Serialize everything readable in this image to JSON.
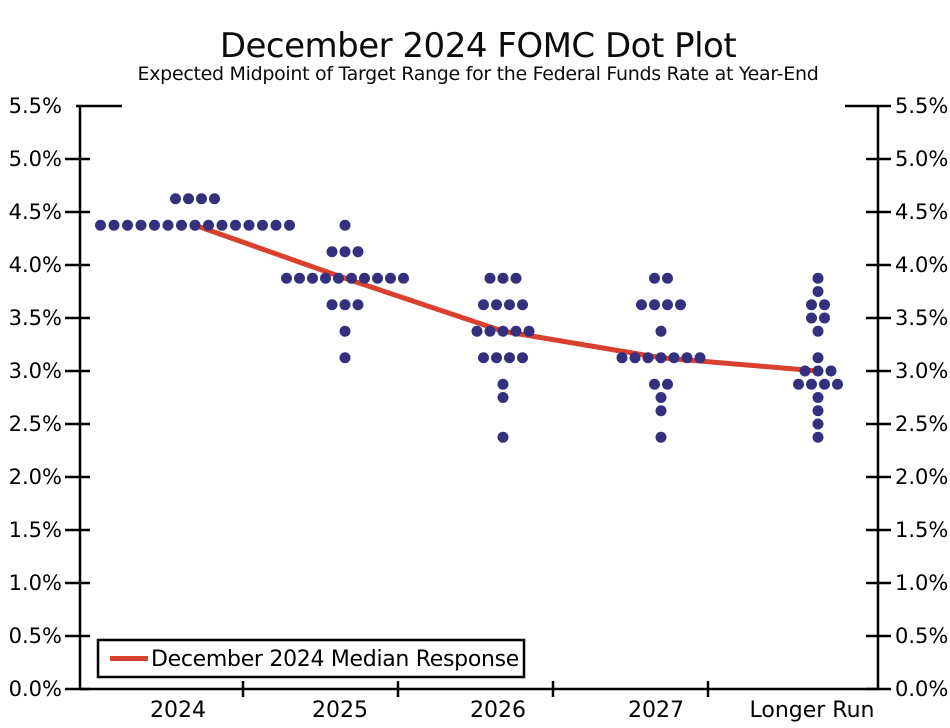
{
  "colors": {
    "dot": "#34307E",
    "median_line": "#D9402D",
    "axis": "#000000",
    "text": "#000000",
    "background": "#FFFFFF",
    "legend_border": "#000000"
  },
  "chart_data": {
    "type": "scatter",
    "title": "December 2024 FOMC Dot Plot",
    "subtitle": "Expected Midpoint of Target Range for the Federal Funds Rate at Year-End",
    "categories": [
      "2024",
      "2025",
      "2026",
      "2027",
      "Longer Run"
    ],
    "xlabel": "",
    "ylabel": "",
    "ylim": [
      0.0,
      5.5
    ],
    "ytick_step": 0.5,
    "ytick_labels": [
      "5.5%",
      "5.0%",
      "4.5%",
      "4.0%",
      "3.5%",
      "3.0%",
      "2.5%",
      "2.0%",
      "1.5%",
      "1.0%",
      "0.5%",
      "0.0%"
    ],
    "y_axis_sides": [
      "left",
      "right"
    ],
    "grid": false,
    "dot_distribution": {
      "2024": [
        {
          "rate": 4.625,
          "count": 4
        },
        {
          "rate": 4.375,
          "count": 15
        }
      ],
      "2025": [
        {
          "rate": 4.375,
          "count": 1
        },
        {
          "rate": 4.125,
          "count": 3
        },
        {
          "rate": 3.875,
          "count": 10
        },
        {
          "rate": 3.625,
          "count": 3
        },
        {
          "rate": 3.375,
          "count": 1
        },
        {
          "rate": 3.125,
          "count": 1
        }
      ],
      "2026": [
        {
          "rate": 3.875,
          "count": 3
        },
        {
          "rate": 3.625,
          "count": 4
        },
        {
          "rate": 3.375,
          "count": 5
        },
        {
          "rate": 3.125,
          "count": 4
        },
        {
          "rate": 2.875,
          "count": 1
        },
        {
          "rate": 2.75,
          "count": 1
        },
        {
          "rate": 2.375,
          "count": 1
        }
      ],
      "2027": [
        {
          "rate": 3.875,
          "count": 2
        },
        {
          "rate": 3.625,
          "count": 4
        },
        {
          "rate": 3.375,
          "count": 1
        },
        {
          "rate": 3.125,
          "count": 7
        },
        {
          "rate": 2.875,
          "count": 2
        },
        {
          "rate": 2.75,
          "count": 1
        },
        {
          "rate": 2.625,
          "count": 1
        },
        {
          "rate": 2.375,
          "count": 1
        }
      ],
      "Longer Run": [
        {
          "rate": 3.875,
          "count": 1
        },
        {
          "rate": 3.75,
          "count": 1
        },
        {
          "rate": 3.625,
          "count": 2
        },
        {
          "rate": 3.5,
          "count": 2
        },
        {
          "rate": 3.375,
          "count": 1
        },
        {
          "rate": 3.125,
          "count": 1
        },
        {
          "rate": 3.0,
          "count": 3
        },
        {
          "rate": 2.875,
          "count": 4
        },
        {
          "rate": 2.75,
          "count": 1
        },
        {
          "rate": 2.625,
          "count": 1
        },
        {
          "rate": 2.5,
          "count": 1
        },
        {
          "rate": 2.375,
          "count": 1
        }
      ]
    },
    "median_series": {
      "name": "December 2024 Median Response",
      "values": [
        4.375,
        3.875,
        3.375,
        3.125,
        3.0
      ]
    },
    "legend_position": "bottom-left"
  }
}
